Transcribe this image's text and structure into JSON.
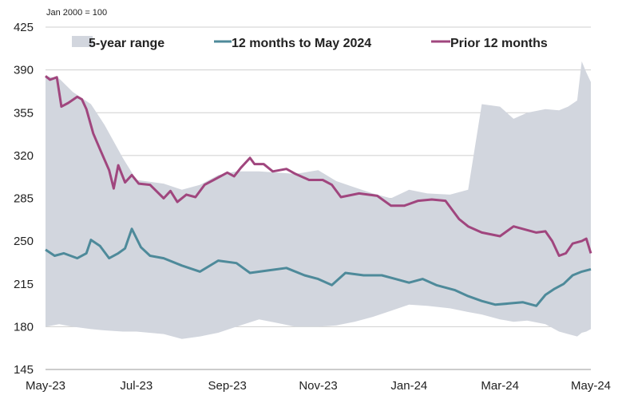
{
  "chart_data": {
    "type": "line",
    "unit_note": "Jan 2000 = 100",
    "title": "",
    "xlabel": "",
    "ylabel": "",
    "ylim": [
      145,
      425
    ],
    "yticks": [
      145,
      180,
      215,
      250,
      285,
      320,
      355,
      390,
      425
    ],
    "x_range": [
      0,
      12
    ],
    "xticks": [
      {
        "pos": 0,
        "label": "May-23"
      },
      {
        "pos": 2,
        "label": "Jul-23"
      },
      {
        "pos": 4,
        "label": "Sep-23"
      },
      {
        "pos": 6,
        "label": "Nov-23"
      },
      {
        "pos": 8,
        "label": "Jan-24"
      },
      {
        "pos": 10,
        "label": "Mar-24"
      },
      {
        "pos": 12,
        "label": "May-24"
      }
    ],
    "grid": true,
    "legend_position": "top",
    "legend": [
      {
        "name": "5-year range",
        "kind": "area",
        "color": "#d2d6de"
      },
      {
        "name": "12 months to May 2024",
        "kind": "line",
        "color": "#4e8a9a"
      },
      {
        "name": "Prior 12 months",
        "kind": "line",
        "color": "#a0467e"
      }
    ],
    "range": {
      "name": "5-year range",
      "color": "#d2d6de",
      "x": [
        0,
        0.3,
        0.6,
        1.0,
        1.3,
        1.7,
        2.0,
        2.6,
        3.0,
        3.4,
        3.8,
        4.2,
        4.7,
        5.1,
        5.5,
        6.0,
        6.4,
        6.8,
        7.2,
        7.6,
        8.0,
        8.4,
        8.9,
        9.3,
        9.6,
        10.0,
        10.3,
        10.6,
        11.0,
        11.3,
        11.5,
        11.7,
        11.8,
        11.9,
        12.0
      ],
      "high": [
        385,
        383,
        372,
        362,
        345,
        318,
        300,
        297,
        292,
        296,
        304,
        307,
        307,
        306,
        305,
        308,
        299,
        294,
        289,
        285,
        292,
        289,
        288,
        292,
        362,
        360,
        350,
        355,
        358,
        357,
        360,
        365,
        397,
        388,
        380
      ],
      "low": [
        180,
        182,
        180,
        178,
        177,
        176,
        176,
        174,
        170,
        172,
        175,
        180,
        186,
        183,
        180,
        180,
        181,
        184,
        188,
        193,
        198,
        197,
        195,
        192,
        190,
        186,
        184,
        185,
        182,
        176,
        174,
        172,
        175,
        176,
        178
      ]
    },
    "series": [
      {
        "name": "12 months to May 2024",
        "color": "#4e8a9a",
        "x": [
          0,
          0.2,
          0.4,
          0.7,
          0.9,
          1.0,
          1.2,
          1.4,
          1.6,
          1.75,
          1.9,
          2.1,
          2.3,
          2.6,
          3.0,
          3.4,
          3.8,
          4.2,
          4.5,
          4.9,
          5.3,
          5.7,
          6.0,
          6.3,
          6.6,
          7.0,
          7.4,
          7.7,
          8.0,
          8.3,
          8.6,
          9.0,
          9.3,
          9.6,
          9.9,
          10.2,
          10.5,
          10.8,
          11.0,
          11.2,
          11.4,
          11.6,
          11.8,
          12.0
        ],
        "values": [
          243,
          238,
          240,
          236,
          240,
          251,
          246,
          236,
          240,
          244,
          260,
          245,
          238,
          236,
          230,
          225,
          234,
          232,
          224,
          226,
          228,
          222,
          219,
          214,
          224,
          222,
          222,
          219,
          216,
          219,
          214,
          210,
          205,
          201,
          198,
          199,
          200,
          197,
          206,
          211,
          215,
          222,
          225,
          227
        ]
      },
      {
        "name": "Prior 12 months",
        "color": "#a0467e",
        "x": [
          0,
          0.1,
          0.25,
          0.35,
          0.5,
          0.7,
          0.8,
          0.9,
          1.05,
          1.2,
          1.4,
          1.5,
          1.6,
          1.75,
          1.9,
          2.05,
          2.3,
          2.6,
          2.75,
          2.9,
          3.1,
          3.3,
          3.5,
          3.7,
          4.0,
          4.15,
          4.3,
          4.5,
          4.6,
          4.8,
          5.0,
          5.3,
          5.5,
          5.8,
          6.1,
          6.3,
          6.5,
          6.9,
          7.3,
          7.6,
          7.9,
          8.2,
          8.5,
          8.8,
          9.1,
          9.3,
          9.6,
          10.0,
          10.3,
          10.5,
          10.8,
          11.0,
          11.15,
          11.3,
          11.45,
          11.6,
          11.8,
          11.9,
          12.0
        ],
        "values": [
          385,
          382,
          384,
          360,
          363,
          368,
          366,
          358,
          338,
          325,
          308,
          293,
          312,
          298,
          304,
          297,
          296,
          285,
          291,
          282,
          288,
          286,
          296,
          300,
          306,
          303,
          310,
          318,
          313,
          313,
          307,
          309,
          305,
          300,
          300,
          296,
          286,
          289,
          287,
          279,
          279,
          283,
          284,
          283,
          268,
          262,
          257,
          254,
          262,
          260,
          257,
          258,
          250,
          238,
          240,
          248,
          250,
          252,
          240
        ]
      }
    ]
  }
}
